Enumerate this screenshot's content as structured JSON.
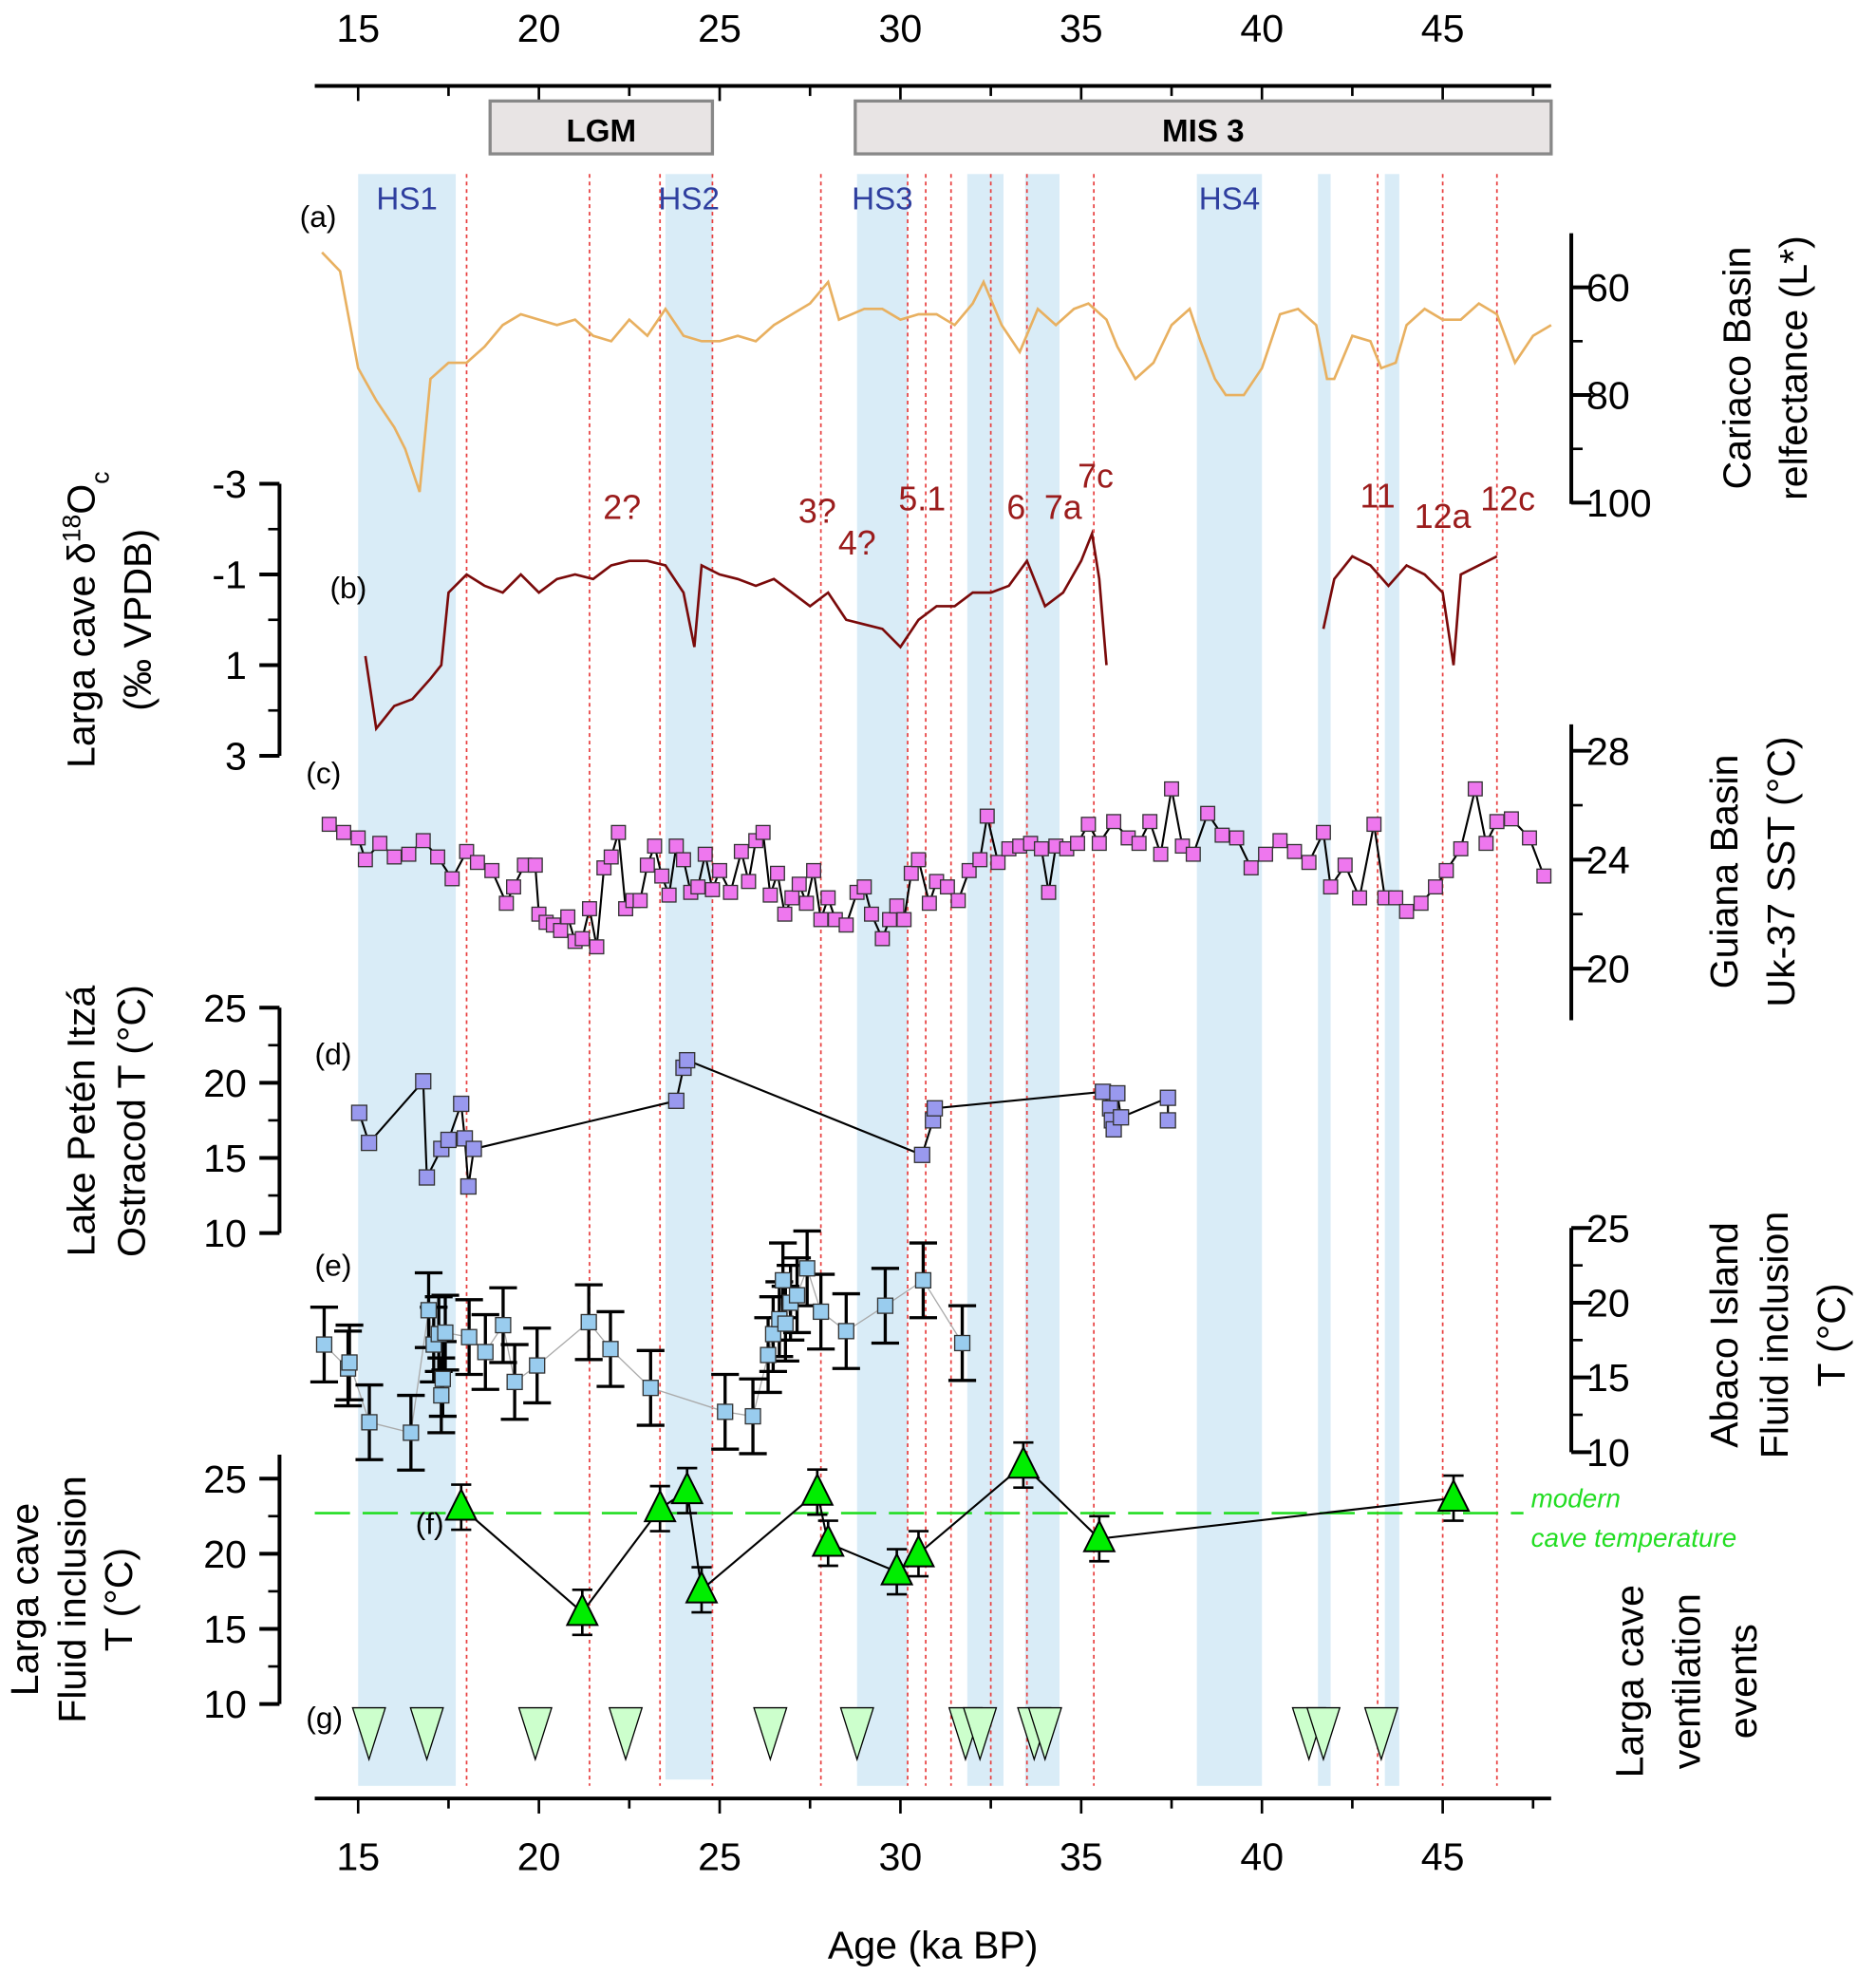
{
  "chart_data": {
    "type": "multi-panel stacked time series",
    "xlabel": "Age (ka BP)",
    "xlim": [
      13.8,
      48
    ],
    "x_ticks": [
      15,
      20,
      25,
      30,
      35,
      40,
      45
    ],
    "colors": {
      "band": "#d9ecf7",
      "event_line": "#e84040",
      "cariaco": "#e8b060",
      "d18o": "#7a0a0a",
      "sst": "#ee77ee",
      "ostracod": "#9999ee",
      "abaco": "#99ccee",
      "larga_fi": "#00ee00",
      "ventilation": "#ccffcc",
      "modern": "#22dd22"
    },
    "periods": [
      {
        "label": "LGM",
        "start": 18.65,
        "end": 24.8
      },
      {
        "label": "MIS 3",
        "start": 28.75,
        "end": 48
      }
    ],
    "bands": [
      {
        "label": "HS1",
        "start": 15.0,
        "end": 17.7
      },
      {
        "label": "HS2",
        "start": 23.5,
        "end": 24.8
      },
      {
        "label": "HS3",
        "start": 28.8,
        "end": 30.2
      },
      {
        "label": "",
        "start": 31.85,
        "end": 32.85
      },
      {
        "label": "",
        "start": 33.45,
        "end": 34.4
      },
      {
        "label": "HS4",
        "start": 38.2,
        "end": 40.0
      },
      {
        "label": "",
        "start": 41.55,
        "end": 41.9
      },
      {
        "label": "",
        "start": 43.4,
        "end": 43.8
      }
    ],
    "event_lines": [
      18.0,
      21.4,
      23.35,
      24.8,
      27.8,
      30.2,
      30.7,
      31.4,
      32.5,
      33.5,
      35.35,
      43.2,
      45.0,
      46.5
    ],
    "event_labels": [
      {
        "t": "2?",
        "x": 22.3
      },
      {
        "t": "3?",
        "x": 27.7
      },
      {
        "t": "4?",
        "x": 28.8
      },
      {
        "t": "5.1",
        "x": 30.6
      },
      {
        "t": "6",
        "x": 33.2
      },
      {
        "t": "7a",
        "x": 34.5
      },
      {
        "t": "7c",
        "x": 35.4
      },
      {
        "t": "11",
        "x": 43.2
      },
      {
        "t": "12a",
        "x": 45.0
      },
      {
        "t": "12c",
        "x": 46.8
      }
    ],
    "panels": [
      {
        "id": "a",
        "letter": "(a)",
        "type": "line",
        "ylabel": [
          "Cariaco Basin",
          "relfectance (L*)"
        ],
        "ylim": [
          50,
          100
        ],
        "reversed": true,
        "ticks": [
          60,
          80,
          100
        ],
        "axis_side": "right",
        "x": [
          14,
          14.5,
          15,
          15.5,
          16,
          16.3,
          16.7,
          17,
          17.5,
          18,
          18.5,
          19,
          19.5,
          20,
          20.5,
          21,
          21.5,
          22,
          22.5,
          23,
          23.5,
          24,
          24.5,
          25,
          25.5,
          26,
          26.5,
          27,
          27.5,
          28,
          28.3,
          29,
          29.5,
          30,
          30.5,
          31,
          31.5,
          32,
          32.3,
          32.8,
          33.3,
          33.8,
          34.3,
          34.8,
          35.2,
          35.7,
          36,
          36.5,
          37,
          37.5,
          38,
          38.3,
          38.7,
          39,
          39.5,
          40,
          40.5,
          41,
          41.5,
          41.8,
          42,
          42.5,
          43,
          43.3,
          43.7,
          44,
          44.5,
          45,
          45.5,
          46,
          46.5,
          47,
          47.5,
          48
        ],
        "y": [
          53.5,
          57,
          75,
          81,
          86,
          90,
          98,
          77,
          74,
          74,
          71,
          67,
          65,
          66,
          67,
          66,
          69,
          70,
          66,
          69,
          64,
          69,
          70,
          70,
          69,
          70,
          67,
          65,
          63,
          59,
          66,
          64,
          64,
          66,
          65,
          65,
          67,
          63,
          59,
          67,
          72,
          64,
          67,
          64,
          63,
          66,
          71,
          77,
          74,
          67,
          64,
          70,
          77,
          80,
          80,
          75,
          65,
          64,
          67,
          77,
          77,
          69,
          70,
          75,
          74,
          67,
          64,
          66,
          66,
          63,
          65,
          74,
          69,
          67
        ]
      },
      {
        "id": "b",
        "letter": "(b)",
        "type": "line",
        "ylabel": [
          "Larga cave δ18Oc",
          "(‰ VPDB)"
        ],
        "ylim": [
          -3,
          3
        ],
        "reversed": true,
        "ticks": [
          -3,
          -1,
          1,
          3
        ],
        "axis_side": "left",
        "segments": [
          {
            "x": [
              15.2,
              15.5,
              16,
              16.5,
              17,
              17.3,
              17.5,
              18,
              18.5,
              19,
              19.5,
              20,
              20.5,
              21,
              21.5,
              22,
              22.5,
              23,
              23.5,
              24,
              24.3,
              24.5,
              25,
              25.5,
              26,
              26.5,
              27,
              27.5,
              28,
              28.5,
              29,
              29.5,
              30,
              30.5,
              31,
              31.5,
              32,
              32.5,
              33,
              33.5,
              34,
              34.5,
              35,
              35.3,
              35.5,
              35.7
            ],
            "y": [
              0.8,
              2.4,
              1.9,
              1.75,
              1.3,
              1.0,
              -0.6,
              -1.0,
              -0.75,
              -0.6,
              -1.0,
              -0.6,
              -0.9,
              -1.0,
              -0.9,
              -1.2,
              -1.3,
              -1.3,
              -1.2,
              -0.6,
              0.6,
              -1.2,
              -1.0,
              -0.9,
              -0.75,
              -0.9,
              -0.6,
              -0.3,
              -0.6,
              0.0,
              0.1,
              0.2,
              0.6,
              0.0,
              -0.3,
              -0.3,
              -0.6,
              -0.6,
              -0.75,
              -1.3,
              -0.3,
              -0.6,
              -1.3,
              -1.9,
              -0.9,
              1.0
            ]
          },
          {
            "x": [
              41.7,
              42,
              42.5,
              43,
              43.5,
              44,
              44.5,
              45,
              45.3,
              45.5,
              46,
              46.5
            ],
            "y": [
              0.2,
              -0.9,
              -1.4,
              -1.2,
              -0.75,
              -1.2,
              -1.0,
              -0.6,
              1.0,
              -1.0,
              -1.2,
              -1.4
            ]
          }
        ]
      },
      {
        "id": "c",
        "letter": "(c)",
        "type": "scatter-line",
        "marker": "square",
        "ylabel": [
          "Guiana Basin",
          "Uk-37 SST (°C)"
        ],
        "ylim": [
          19,
          29
        ],
        "ticks": [
          20,
          24,
          28
        ],
        "axis_side": "right",
        "x": [
          14.2,
          14.6,
          15.0,
          15.2,
          15.6,
          16.0,
          16.4,
          16.8,
          17.2,
          17.6,
          18.0,
          18.3,
          18.7,
          19.1,
          19.3,
          19.6,
          19.9,
          20.0,
          20.2,
          20.4,
          20.6,
          20.8,
          21.0,
          21.2,
          21.4,
          21.6,
          21.8,
          22.0,
          22.2,
          22.4,
          22.6,
          22.8,
          23.0,
          23.2,
          23.4,
          23.6,
          23.8,
          24.0,
          24.2,
          24.4,
          24.6,
          24.8,
          25.0,
          25.3,
          25.6,
          25.8,
          26.0,
          26.2,
          26.4,
          26.6,
          26.8,
          27.0,
          27.2,
          27.4,
          27.6,
          27.8,
          28.0,
          28.2,
          28.5,
          28.8,
          29.0,
          29.2,
          29.5,
          29.7,
          29.9,
          30.1,
          30.3,
          30.5,
          30.8,
          31.0,
          31.3,
          31.6,
          31.9,
          32.2,
          32.4,
          32.7,
          33.0,
          33.3,
          33.6,
          33.9,
          34.1,
          34.3,
          34.6,
          34.9,
          35.2,
          35.5,
          35.9,
          36.3,
          36.6,
          36.9,
          37.2,
          37.5,
          37.8,
          38.1,
          38.5,
          38.9,
          39.3,
          39.7,
          40.1,
          40.5,
          40.9,
          41.3,
          41.7,
          41.9,
          42.3,
          42.7,
          43.1,
          43.4,
          43.7,
          44.0,
          44.4,
          44.8,
          45.1,
          45.5,
          45.9,
          46.2,
          46.5,
          46.9,
          47.4,
          47.8
        ],
        "y": [
          25.3,
          25.0,
          24.8,
          24.0,
          24.6,
          24.1,
          24.2,
          24.7,
          24.1,
          23.3,
          24.3,
          23.9,
          23.6,
          22.4,
          23.0,
          23.8,
          23.8,
          22.0,
          21.7,
          21.6,
          21.4,
          21.9,
          21.0,
          21.1,
          22.2,
          20.8,
          23.7,
          24.1,
          25.0,
          22.2,
          22.5,
          22.5,
          23.8,
          24.5,
          23.4,
          22.7,
          24.5,
          24.0,
          22.8,
          23.0,
          24.2,
          22.9,
          23.6,
          22.8,
          24.3,
          23.2,
          24.7,
          25.0,
          22.7,
          23.5,
          22.0,
          22.6,
          23.1,
          22.4,
          23.6,
          21.8,
          22.6,
          21.8,
          21.6,
          22.8,
          23.0,
          22.0,
          21.1,
          21.8,
          22.3,
          21.8,
          23.5,
          24.0,
          22.4,
          23.2,
          23.0,
          22.5,
          23.6,
          24.0,
          25.6,
          23.9,
          24.4,
          24.5,
          24.6,
          24.4,
          22.8,
          24.5,
          24.4,
          24.6,
          25.3,
          24.6,
          25.4,
          24.8,
          24.6,
          25.4,
          24.2,
          26.6,
          24.5,
          24.2,
          25.7,
          24.9,
          24.8,
          23.7,
          24.2,
          24.7,
          24.3,
          23.9,
          25.0,
          23.0,
          23.8,
          22.6,
          25.3,
          22.6,
          22.6,
          22.1,
          22.4,
          23.0,
          23.6,
          24.4,
          26.6,
          24.6,
          25.4,
          25.5,
          24.8,
          23.4
        ]
      },
      {
        "id": "d",
        "letter": "(d)",
        "type": "scatter-line",
        "marker": "square",
        "ylabel": [
          "Lake Petén Itzá",
          "Ostracod T (°C)"
        ],
        "ylim": [
          10,
          25
        ],
        "ticks": [
          10,
          15,
          20,
          25
        ],
        "axis_side": "left",
        "x": [
          15.03,
          15.3,
          16.8,
          16.9,
          17.3,
          17.5,
          17.85,
          17.95,
          18.05,
          18.2,
          23.8,
          24.0,
          24.1,
          30.6,
          30.9,
          30.95,
          35.6,
          35.8,
          35.85,
          35.9,
          36.0,
          36.1,
          37.4,
          37.4
        ],
        "y": [
          18.0,
          16.0,
          20.1,
          13.7,
          15.6,
          16.2,
          18.6,
          16.3,
          13.1,
          15.6,
          18.8,
          21.0,
          21.5,
          15.2,
          17.5,
          18.3,
          19.4,
          18.3,
          17.5,
          16.9,
          19.3,
          17.7,
          19.0,
          17.5
        ]
      },
      {
        "id": "e",
        "letter": "(e)",
        "type": "scatter-errorbar",
        "marker": "square",
        "ylabel": [
          "Abaco Island",
          "Fluid inclusion",
          "T (°C)"
        ],
        "ylim": [
          10,
          25
        ],
        "ticks": [
          10,
          15,
          20,
          25
        ],
        "axis_side": "right",
        "error": 2.5,
        "x": [
          14.06,
          14.72,
          14.76,
          15.31,
          16.46,
          16.95,
          17.09,
          17.23,
          17.3,
          17.34,
          17.41,
          18.07,
          18.52,
          19.01,
          19.33,
          19.95,
          21.38,
          21.98,
          23.09,
          25.15,
          25.92,
          26.34,
          26.48,
          26.65,
          26.75,
          26.82,
          26.96,
          27.14,
          27.42,
          27.8,
          28.5,
          29.58,
          30.63,
          31.71
        ],
        "y": [
          17.2,
          15.6,
          16.0,
          12.0,
          11.3,
          19.5,
          17.2,
          17.9,
          13.8,
          14.9,
          18.0,
          17.7,
          16.7,
          18.5,
          14.7,
          15.8,
          18.7,
          16.9,
          14.3,
          12.7,
          12.4,
          16.5,
          17.9,
          18.9,
          21.5,
          18.6,
          20.0,
          20.5,
          22.3,
          19.4,
          18.1,
          19.8,
          21.5,
          17.3
        ]
      },
      {
        "id": "f",
        "letter": "(f)",
        "type": "scatter-errorbar",
        "marker": "triangle-up",
        "ylabel": [
          "Larga cave",
          "Fluid inclusion",
          "T (°C)"
        ],
        "ylim": [
          8.5,
          27
        ],
        "ticks": [
          10,
          15,
          20,
          25
        ],
        "axis_side": "left",
        "error": 1.5,
        "x": [
          17.85,
          21.2,
          23.35,
          24.1,
          24.5,
          27.7,
          28.0,
          29.9,
          30.5,
          33.4,
          35.5,
          45.3
        ],
        "y": [
          23.1,
          16.1,
          23.0,
          24.2,
          17.6,
          24.1,
          20.7,
          18.8,
          20.0,
          25.9,
          21.0,
          23.7
        ],
        "reference": {
          "value": 22.7,
          "label": [
            "modern",
            "cave temperature"
          ]
        }
      },
      {
        "id": "g",
        "letter": "(g)",
        "type": "event-markers",
        "marker": "triangle-down",
        "ylabel": [
          "Larga cave",
          "ventilation",
          "events"
        ],
        "x": [
          15.3,
          16.9,
          19.9,
          22.4,
          26.4,
          28.8,
          31.8,
          32.2,
          33.7,
          34.0,
          41.3,
          41.7,
          43.3
        ]
      }
    ]
  }
}
